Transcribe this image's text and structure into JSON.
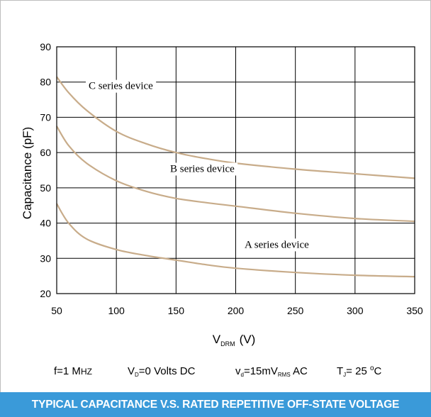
{
  "chart_data": {
    "type": "line",
    "title": "",
    "xlabel": "V",
    "xlabel_sub": "DRM",
    "xlabel_unit": "(V)",
    "ylabel": "Capacitance (pF)",
    "xlim": [
      50,
      350
    ],
    "ylim": [
      20,
      90
    ],
    "xticks": [
      50,
      100,
      150,
      200,
      250,
      300,
      350
    ],
    "yticks": [
      20,
      30,
      40,
      50,
      60,
      70,
      80,
      90
    ],
    "grid": true,
    "series": [
      {
        "name": "C series device",
        "color": "#c8ac8a",
        "x": [
          50,
          60,
          75,
          100,
          125,
          150,
          175,
          200,
          250,
          300,
          350
        ],
        "y": [
          81.5,
          77,
          72,
          66,
          62.5,
          60,
          58.3,
          57,
          55.3,
          54,
          52.7
        ]
      },
      {
        "name": "B series device",
        "color": "#c8ac8a",
        "x": [
          50,
          60,
          75,
          100,
          125,
          150,
          175,
          200,
          250,
          300,
          350
        ],
        "y": [
          67.5,
          62,
          57,
          52,
          49,
          47,
          45.8,
          44.8,
          42.8,
          41.3,
          40.5
        ]
      },
      {
        "name": "A series device",
        "color": "#c8ac8a",
        "x": [
          50,
          60,
          75,
          100,
          125,
          150,
          175,
          200,
          250,
          300,
          350
        ],
        "y": [
          45.5,
          40,
          35.5,
          32.5,
          30.8,
          29.5,
          28.2,
          27.2,
          26,
          25.2,
          24.8
        ]
      }
    ]
  },
  "conditions": {
    "freq_pre": "f=1 M",
    "freq_unit": "HZ",
    "vd_pre": "V",
    "vd_sub": "D",
    "vd_post": "=0 Volts DC",
    "vac_pre": "v",
    "vac_sub": "d",
    "vac_mid": "=15mV",
    "vac_sub2": "RMS",
    "vac_post": " AC",
    "tj_pre": "T",
    "tj_sub": "J",
    "tj_post": "= 25 ",
    "tj_deg": "o",
    "tj_unit": "C"
  },
  "footer": {
    "caption": "TYPICAL CAPACITANCE V.S. RATED REPETITIVE OFF-STATE VOLTAGE",
    "bg_color": "#3a9ad9"
  }
}
